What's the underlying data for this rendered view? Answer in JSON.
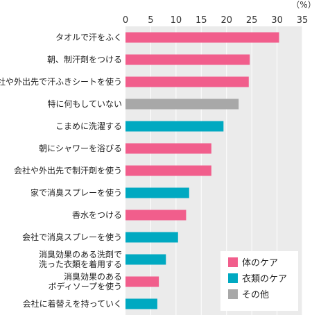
{
  "chart_data": {
    "type": "bar",
    "orientation": "horizontal",
    "unit_label": "（%）",
    "xlim": [
      0,
      35
    ],
    "xticks": [
      0,
      5,
      10,
      15,
      20,
      25,
      30,
      35
    ],
    "grid": true,
    "legend_position": "bottom-right",
    "series": [
      {
        "name": "体のケア",
        "color": "#f15e8c"
      },
      {
        "name": "衣類のケア",
        "color": "#00a9c1"
      },
      {
        "name": "その他",
        "color": "#a8a8a8"
      }
    ],
    "categories": [
      {
        "label": [
          "タオルで汗をふく"
        ],
        "value": 30.4,
        "series": 0
      },
      {
        "label": [
          "朝、制汗剤をつける"
        ],
        "value": 24.6,
        "series": 0
      },
      {
        "label": [
          "会社や外出先で汗ふきシートを使う"
        ],
        "value": 24.4,
        "series": 0
      },
      {
        "label": [
          "特に何もしていない"
        ],
        "value": 22.4,
        "series": 2
      },
      {
        "label": [
          "こまめに洗濯する"
        ],
        "value": 19.4,
        "series": 1
      },
      {
        "label": [
          "朝にシャワーを浴びる"
        ],
        "value": 17.0,
        "series": 0
      },
      {
        "label": [
          "会社や外出先で制汗剤を使う"
        ],
        "value": 17.0,
        "series": 0
      },
      {
        "label": [
          "家で消臭スプレーを使う"
        ],
        "value": 12.6,
        "series": 1
      },
      {
        "label": [
          "香水をつける"
        ],
        "value": 12.0,
        "series": 0
      },
      {
        "label": [
          "会社で消臭スプレーを使う"
        ],
        "value": 10.4,
        "series": 1
      },
      {
        "label": [
          "消臭効果のある洗剤で",
          "洗った衣類を着用する"
        ],
        "value": 8.0,
        "series": 1
      },
      {
        "label": [
          "消臭効果のある",
          "ボディソープを使う"
        ],
        "value": 6.6,
        "series": 0
      },
      {
        "label": [
          "会社に着替えを持っていく"
        ],
        "value": 6.3,
        "series": 1
      }
    ]
  }
}
